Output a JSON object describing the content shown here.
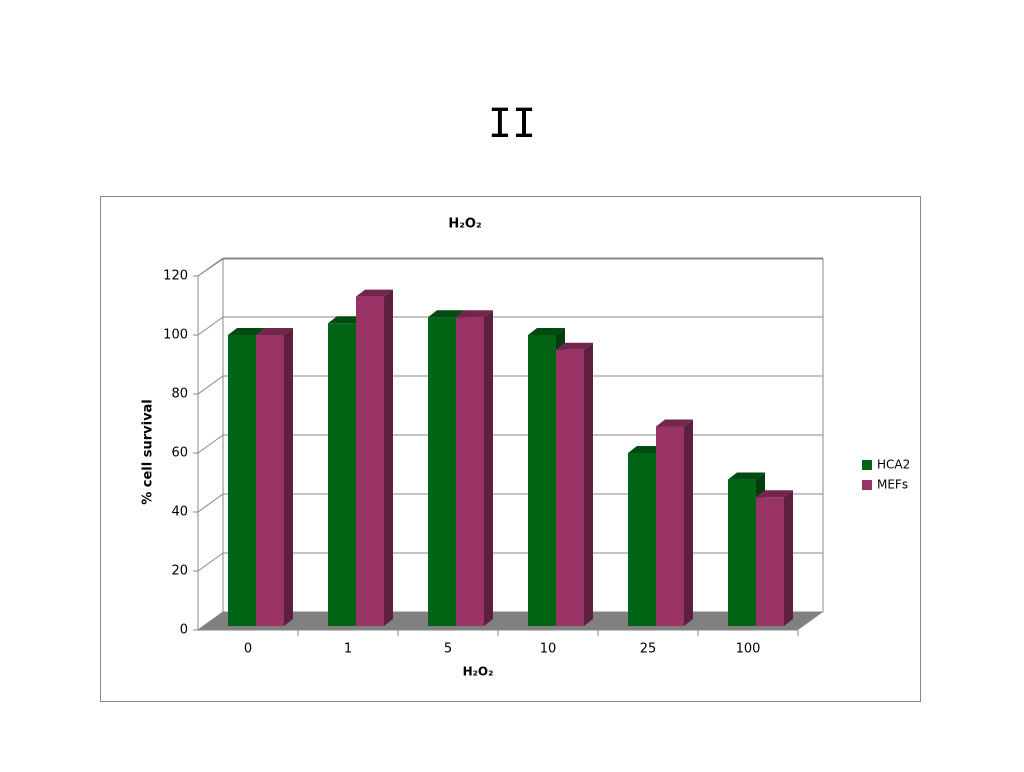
{
  "slide_title": "II",
  "chart_data": {
    "type": "bar3d",
    "title": "H₂O₂",
    "x_label": "H₂O₂",
    "y_label": "% cell survival",
    "categories": [
      "0",
      "1",
      "5",
      "10",
      "25",
      "100"
    ],
    "series": [
      {
        "name": "HCA2",
        "color": "#006414",
        "values": [
          100,
          104,
          106,
          100,
          60,
          51
        ]
      },
      {
        "name": "MEFs",
        "color": "#993366",
        "values": [
          100,
          113,
          106,
          95,
          69,
          45
        ]
      }
    ],
    "ylim": [
      0,
      120
    ],
    "yticks": [
      0,
      20,
      40,
      60,
      80,
      100,
      120
    ],
    "grid": true,
    "legend": "right"
  }
}
